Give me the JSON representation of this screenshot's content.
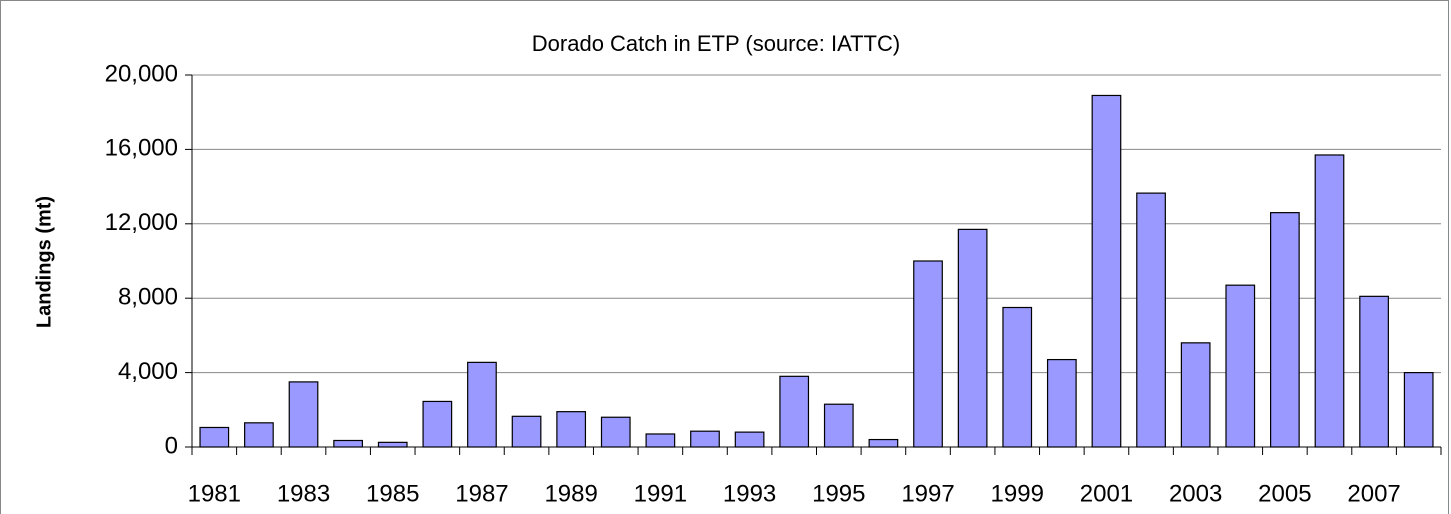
{
  "chart_data": {
    "type": "bar",
    "title": "Dorado Catch in ETP (source: IATTC)",
    "y_label": "Landings (mt)",
    "categories": [
      "1981",
      null,
      "1983",
      null,
      "1985",
      null,
      "1987",
      null,
      "1989",
      null,
      "1991",
      null,
      "1993",
      null,
      "1995",
      null,
      "1997",
      null,
      "1999",
      null,
      "2001",
      null,
      "2003",
      null,
      "2005",
      null,
      "2007",
      null
    ],
    "values": [
      1050,
      1300,
      3500,
      350,
      250,
      2450,
      4550,
      1650,
      1900,
      1600,
      700,
      850,
      800,
      3800,
      2300,
      400,
      10000,
      11700,
      7500,
      4700,
      18900,
      13650,
      5600,
      8700,
      12600,
      15700,
      8100,
      4000
    ],
    "color": "#9999ff",
    "ylim": [
      0,
      20000
    ],
    "yticks": [
      0,
      {
        "value": 4000,
        "label": "4,000"
      },
      {
        "value": 8000,
        "label": "8,000"
      },
      {
        "value": 12000,
        "label": "12,000"
      },
      {
        "value": 16000,
        "label": "16,000"
      },
      {
        "value": 20000,
        "label": "20,000"
      }
    ],
    "grid": true
  }
}
